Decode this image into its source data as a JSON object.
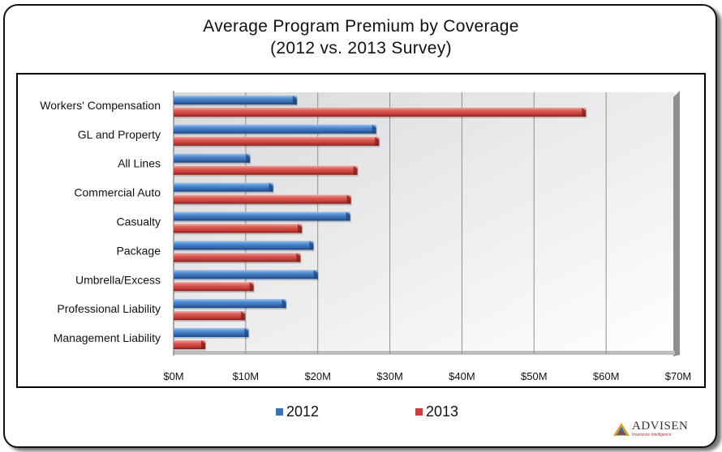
{
  "chart_data": {
    "type": "bar",
    "orientation": "horizontal",
    "title": "Average Program Premium by Coverage",
    "subtitle": "(2012 vs. 2013 Survey)",
    "xlabel": "",
    "ylabel": "",
    "categories": [
      "Workers' Compensation",
      "GL and Property",
      "All Lines",
      "Commercial Auto",
      "Casualty",
      "Package",
      "Umbrella/Excess",
      "Professional Liability",
      "Management Liability"
    ],
    "series": [
      {
        "name": "2012",
        "color": "#3a72b8",
        "values": [
          17.1,
          28.1,
          10.6,
          13.8,
          24.5,
          19.4,
          20.0,
          15.6,
          10.4
        ]
      },
      {
        "name": "2013",
        "color": "#c9413f",
        "values": [
          57.2,
          28.5,
          25.5,
          24.6,
          17.8,
          17.6,
          11.1,
          9.9,
          4.4
        ]
      }
    ],
    "units": "$M",
    "xlim": [
      0,
      70
    ],
    "x_ticks": [
      0,
      10,
      20,
      30,
      40,
      50,
      60,
      70
    ],
    "x_tick_labels": [
      "$0M",
      "$10M",
      "$20M",
      "$30M",
      "$40M",
      "$50M",
      "$60M",
      "$70M"
    ],
    "grid": true,
    "legend_position": "bottom"
  },
  "legend": [
    {
      "label": "2012",
      "color": "#3a72b8"
    },
    {
      "label": "2013",
      "color": "#c9413f"
    }
  ],
  "logo": {
    "name": "ADVISEN",
    "tagline": "Insurance Intelligence"
  }
}
